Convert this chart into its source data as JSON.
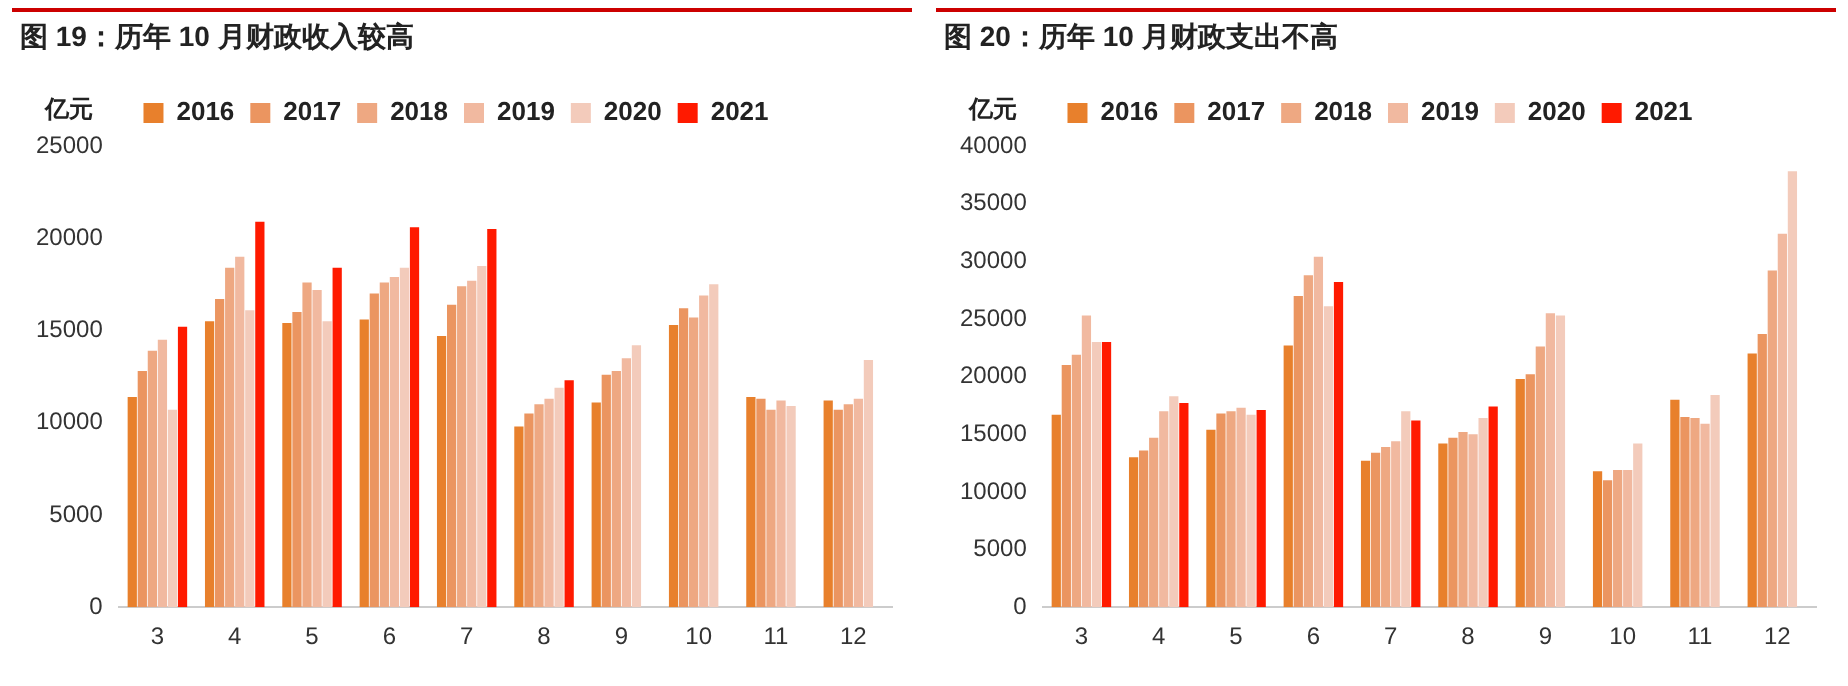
{
  "chart_data": [
    {
      "type": "bar",
      "title": "图 19：历年 10 月财政收入较高",
      "ylabel": "亿元",
      "categories": [
        "3",
        "4",
        "5",
        "6",
        "7",
        "8",
        "9",
        "10",
        "11",
        "12"
      ],
      "ylim": [
        0,
        25000
      ],
      "yticks": [
        0,
        5000,
        10000,
        15000,
        20000,
        25000
      ],
      "grid": false,
      "legend": "top",
      "series": [
        {
          "name": "2016",
          "color": "#e8802c",
          "values": [
            11400,
            15500,
            15400,
            15600,
            14700,
            9800,
            11100,
            15300,
            11400,
            11200
          ]
        },
        {
          "name": "2017",
          "color": "#eb9560",
          "values": [
            12800,
            16700,
            16000,
            17000,
            16400,
            10500,
            12600,
            16200,
            11300,
            10700
          ]
        },
        {
          "name": "2018",
          "color": "#eea882",
          "values": [
            13900,
            18400,
            17600,
            17600,
            17400,
            11000,
            12800,
            15700,
            10700,
            11000
          ]
        },
        {
          "name": "2019",
          "color": "#f1b9a0",
          "values": [
            14500,
            19000,
            17200,
            17900,
            17700,
            11300,
            13500,
            16900,
            11200,
            11300
          ]
        },
        {
          "name": "2020",
          "color": "#f3cbbb",
          "values": [
            10700,
            16100,
            15500,
            18400,
            18500,
            11900,
            14200,
            17500,
            10900,
            13400
          ]
        },
        {
          "name": "2021",
          "color": "#ff1a00",
          "values": [
            15200,
            20900,
            18400,
            20600,
            20500,
            12300,
            null,
            null,
            null,
            null
          ]
        }
      ]
    },
    {
      "type": "bar",
      "title": "图 20：历年 10 月财政支出不高",
      "ylabel": "亿元",
      "categories": [
        "3",
        "4",
        "5",
        "6",
        "7",
        "8",
        "9",
        "10",
        "11",
        "12"
      ],
      "ylim": [
        0,
        40000
      ],
      "yticks": [
        0,
        5000,
        10000,
        15000,
        20000,
        25000,
        30000,
        35000,
        40000
      ],
      "grid": false,
      "legend": "top",
      "series": [
        {
          "name": "2016",
          "color": "#e8802c",
          "values": [
            16700,
            13000,
            15400,
            22700,
            12700,
            14200,
            19800,
            11800,
            18000,
            22000
          ]
        },
        {
          "name": "2017",
          "color": "#eb9560",
          "values": [
            21000,
            13600,
            16800,
            27000,
            13400,
            14700,
            20200,
            11000,
            16500,
            23700
          ]
        },
        {
          "name": "2018",
          "color": "#eea882",
          "values": [
            21900,
            14700,
            17000,
            28800,
            13900,
            15200,
            22600,
            11900,
            16400,
            29200
          ]
        },
        {
          "name": "2019",
          "color": "#f1b9a0",
          "values": [
            25300,
            17000,
            17300,
            30400,
            14400,
            15000,
            25500,
            11900,
            15900,
            32400
          ]
        },
        {
          "name": "2020",
          "color": "#f3cbbb",
          "values": [
            23000,
            18300,
            16700,
            26100,
            17000,
            16400,
            25300,
            14200,
            18400,
            37800
          ]
        },
        {
          "name": "2021",
          "color": "#ff1a00",
          "values": [
            23000,
            17700,
            17100,
            28200,
            16200,
            17400,
            null,
            null,
            null,
            null
          ]
        }
      ]
    }
  ]
}
